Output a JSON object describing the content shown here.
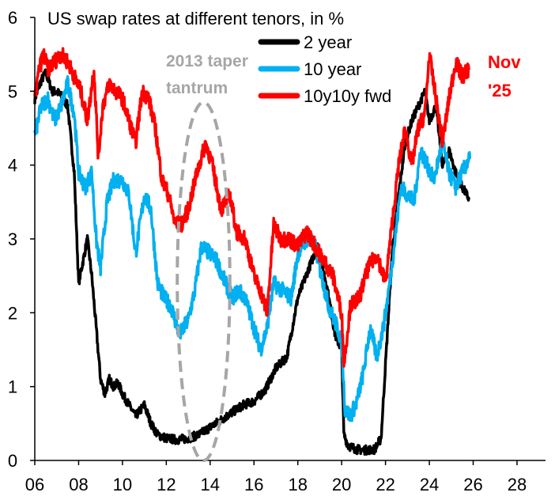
{
  "chart_data": {
    "type": "line",
    "title": "US swap rates at different tenors, in %",
    "xlabel": "",
    "ylabel": "",
    "xlim": [
      2006,
      2029.3
    ],
    "ylim": [
      0,
      6
    ],
    "x_ticks": [
      2006,
      2008,
      2010,
      2012,
      2014,
      2016,
      2018,
      2020,
      2022,
      2024,
      2026,
      2028
    ],
    "x_tick_labels": [
      "06",
      "08",
      "10",
      "12",
      "14",
      "16",
      "18",
      "20",
      "22",
      "24",
      "26",
      "28"
    ],
    "y_ticks": [
      0,
      1,
      2,
      3,
      4,
      5,
      6
    ],
    "y_tick_labels": [
      "0",
      "1",
      "2",
      "3",
      "4",
      "5",
      "6"
    ],
    "grid": false,
    "legend": "top-center",
    "annotations": [
      {
        "text_lines": [
          "2013 taper",
          "tantrum"
        ],
        "color": "#a6a6a6",
        "marker": "dashed-ellipse",
        "x_range": [
          2012.5,
          2014.9
        ],
        "y_range": [
          0,
          4.85
        ]
      },
      {
        "text_lines": [
          "Nov",
          "'25"
        ],
        "color": "#ff0000"
      }
    ],
    "series": [
      {
        "name": "2 year",
        "color": "#000000",
        "x": [
          2006.0,
          2006.3,
          2006.5,
          2006.8,
          2007.0,
          2007.3,
          2007.5,
          2007.8,
          2008.0,
          2008.2,
          2008.4,
          2008.6,
          2008.8,
          2009.0,
          2009.2,
          2009.4,
          2009.6,
          2009.8,
          2010.0,
          2010.3,
          2010.6,
          2011.0,
          2011.3,
          2011.6,
          2012.0,
          2012.5,
          2013.0,
          2013.5,
          2014.0,
          2014.5,
          2015.0,
          2015.5,
          2016.0,
          2016.5,
          2017.0,
          2017.5,
          2018.0,
          2018.5,
          2018.9,
          2019.3,
          2019.7,
          2020.0,
          2020.1,
          2020.3,
          2020.7,
          2021.0,
          2021.5,
          2021.8,
          2022.0,
          2022.3,
          2022.6,
          2022.9,
          2023.2,
          2023.5,
          2023.8,
          2024.0,
          2024.3,
          2024.6,
          2024.9,
          2025.2,
          2025.5,
          2025.8
        ],
        "values": [
          4.9,
          5.15,
          5.25,
          5.0,
          5.0,
          4.9,
          4.8,
          3.9,
          2.4,
          2.7,
          3.0,
          2.5,
          1.8,
          1.1,
          0.9,
          1.1,
          1.0,
          1.05,
          0.9,
          0.75,
          0.6,
          0.75,
          0.5,
          0.35,
          0.3,
          0.28,
          0.3,
          0.35,
          0.45,
          0.55,
          0.65,
          0.75,
          0.8,
          0.95,
          1.25,
          1.4,
          2.2,
          2.6,
          2.9,
          2.4,
          1.7,
          1.5,
          0.35,
          0.2,
          0.15,
          0.14,
          0.15,
          0.3,
          1.3,
          2.8,
          3.6,
          4.3,
          4.6,
          4.8,
          5.0,
          4.6,
          4.8,
          4.0,
          4.2,
          3.9,
          3.7,
          3.55
        ]
      },
      {
        "name": "10 year",
        "color": "#00b0f0",
        "x": [
          2006.0,
          2006.3,
          2006.6,
          2006.9,
          2007.2,
          2007.5,
          2007.8,
          2008.0,
          2008.3,
          2008.6,
          2008.8,
          2009.0,
          2009.3,
          2009.6,
          2010.0,
          2010.3,
          2010.6,
          2011.0,
          2011.3,
          2011.6,
          2011.9,
          2012.2,
          2012.6,
          2013.0,
          2013.3,
          2013.6,
          2014.0,
          2014.3,
          2014.7,
          2015.0,
          2015.3,
          2015.6,
          2016.0,
          2016.3,
          2016.6,
          2016.9,
          2017.3,
          2017.7,
          2018.0,
          2018.4,
          2018.8,
          2019.0,
          2019.4,
          2019.8,
          2020.0,
          2020.15,
          2020.4,
          2020.7,
          2021.0,
          2021.3,
          2021.6,
          2021.9,
          2022.1,
          2022.4,
          2022.7,
          2023.0,
          2023.3,
          2023.6,
          2023.9,
          2024.2,
          2024.6,
          2024.9,
          2025.2,
          2025.5,
          2025.85
        ],
        "values": [
          4.4,
          4.8,
          4.9,
          4.6,
          4.8,
          5.1,
          4.7,
          3.9,
          3.7,
          3.9,
          3.0,
          2.6,
          3.5,
          3.8,
          3.8,
          3.6,
          2.8,
          3.6,
          3.4,
          2.4,
          2.2,
          2.1,
          1.7,
          1.9,
          2.3,
          2.9,
          2.8,
          2.7,
          2.4,
          2.2,
          2.3,
          2.2,
          1.8,
          1.5,
          1.8,
          2.4,
          2.3,
          2.2,
          2.8,
          3.0,
          2.9,
          2.6,
          2.1,
          1.8,
          1.6,
          0.7,
          0.6,
          0.8,
          1.2,
          1.8,
          1.4,
          1.8,
          2.2,
          2.9,
          3.7,
          3.6,
          3.5,
          4.2,
          4.0,
          3.8,
          4.3,
          3.9,
          3.7,
          3.9,
          4.1
        ]
      },
      {
        "name": "10y10y fwd",
        "color": "#ff0000",
        "x": [
          2006.0,
          2006.2,
          2006.4,
          2006.6,
          2006.9,
          2007.2,
          2007.5,
          2007.8,
          2008.1,
          2008.4,
          2008.7,
          2008.9,
          2009.1,
          2009.4,
          2009.7,
          2010.0,
          2010.3,
          2010.6,
          2010.9,
          2011.2,
          2011.5,
          2011.8,
          2012.1,
          2012.4,
          2012.7,
          2013.0,
          2013.4,
          2013.8,
          2014.1,
          2014.5,
          2014.9,
          2015.2,
          2015.6,
          2016.0,
          2016.3,
          2016.6,
          2016.9,
          2017.2,
          2017.6,
          2018.0,
          2018.4,
          2018.8,
          2019.2,
          2019.6,
          2020.0,
          2020.1,
          2020.4,
          2020.8,
          2021.2,
          2021.6,
          2022.0,
          2022.3,
          2022.6,
          2022.9,
          2023.2,
          2023.5,
          2023.8,
          2024.0,
          2024.3,
          2024.6,
          2024.9,
          2025.2,
          2025.5,
          2025.8
        ],
        "values": [
          4.9,
          5.3,
          5.5,
          5.3,
          5.4,
          5.5,
          5.4,
          5.2,
          5.0,
          4.6,
          5.3,
          4.1,
          4.8,
          5.1,
          5.0,
          4.9,
          4.6,
          4.3,
          5.0,
          4.9,
          4.5,
          3.8,
          3.6,
          3.2,
          3.2,
          3.4,
          3.9,
          4.3,
          4.0,
          3.4,
          3.6,
          3.1,
          3.0,
          2.5,
          2.3,
          2.0,
          3.2,
          3.0,
          3.0,
          2.9,
          3.1,
          2.9,
          2.7,
          2.5,
          2.0,
          1.3,
          2.1,
          2.2,
          2.6,
          2.8,
          2.4,
          3.2,
          4.0,
          4.5,
          4.0,
          4.5,
          4.7,
          5.5,
          4.9,
          4.3,
          4.9,
          5.4,
          5.2,
          5.3
        ]
      }
    ]
  }
}
